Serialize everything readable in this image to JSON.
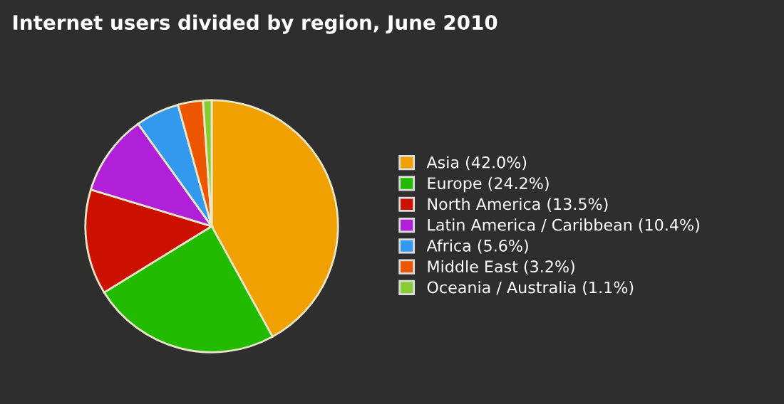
{
  "chart_data": {
    "type": "pie",
    "title": "Internet users divided by region, June 2010",
    "categories": [
      "Asia (42.0%)",
      "Europe (24.2%)",
      "North America (13.5%)",
      "Latin America / Caribbean (10.4%)",
      "Africa (5.6%)",
      "Middle East (3.2%)",
      "Oceania / Australia (1.1%)"
    ],
    "values": [
      42.0,
      24.2,
      13.5,
      10.4,
      5.6,
      3.2,
      1.1
    ],
    "colors": [
      "#f0a000",
      "#22bb00",
      "#cc1100",
      "#b020d8",
      "#3399ee",
      "#ee5500",
      "#88cc33"
    ],
    "legend": "right"
  }
}
